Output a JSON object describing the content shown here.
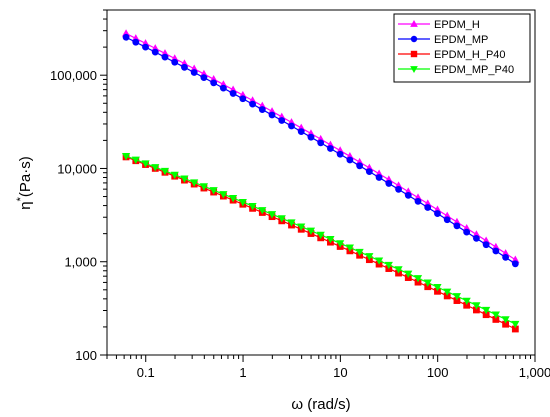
{
  "chart_data": {
    "type": "line",
    "title": "",
    "xlabel": "ω (rad/s)",
    "ylabel": "η* (Pa·s)",
    "ylabel_base": "η",
    "ylabel_sup": "*",
    "ylabel_rest": "(Pa·s)",
    "xscale": "log",
    "yscale": "log",
    "xlim": [
      0.04,
      1000
    ],
    "ylim": [
      100,
      500000
    ],
    "xticks": [
      0.1,
      1,
      10,
      100,
      1000
    ],
    "xtick_labels": [
      "0.1",
      "1",
      "10",
      "100",
      "1,000"
    ],
    "yticks": [
      100,
      1000,
      10000,
      100000
    ],
    "ytick_labels": [
      "100",
      "1,000",
      "10,000",
      "100,000"
    ],
    "grid": false,
    "legend_position": "top-right",
    "series": [
      {
        "name": "EPDM_H",
        "color": "#ff00ff",
        "marker": "triangle-up",
        "start": [
          0.0628,
          280000
        ],
        "end": [
          628,
          1050
        ],
        "pts_per_decade": 10,
        "curve": 0.32
      },
      {
        "name": "EPDM_MP",
        "color": "#0000ff",
        "marker": "circle",
        "start": [
          0.0628,
          255000
        ],
        "end": [
          628,
          950
        ],
        "pts_per_decade": 10,
        "curve": 0.33
      },
      {
        "name": "EPDM_H_P40",
        "color": "#ff0000",
        "marker": "square",
        "start": [
          0.0628,
          13300
        ],
        "end": [
          628,
          190
        ],
        "pts_per_decade": 10,
        "curve": 0.22
      },
      {
        "name": "EPDM_MP_P40",
        "color": "#00ff00",
        "marker": "triangle-down",
        "start": [
          0.0628,
          13600
        ],
        "end": [
          628,
          215
        ],
        "pts_per_decade": 10,
        "curve": 0.22
      }
    ]
  }
}
